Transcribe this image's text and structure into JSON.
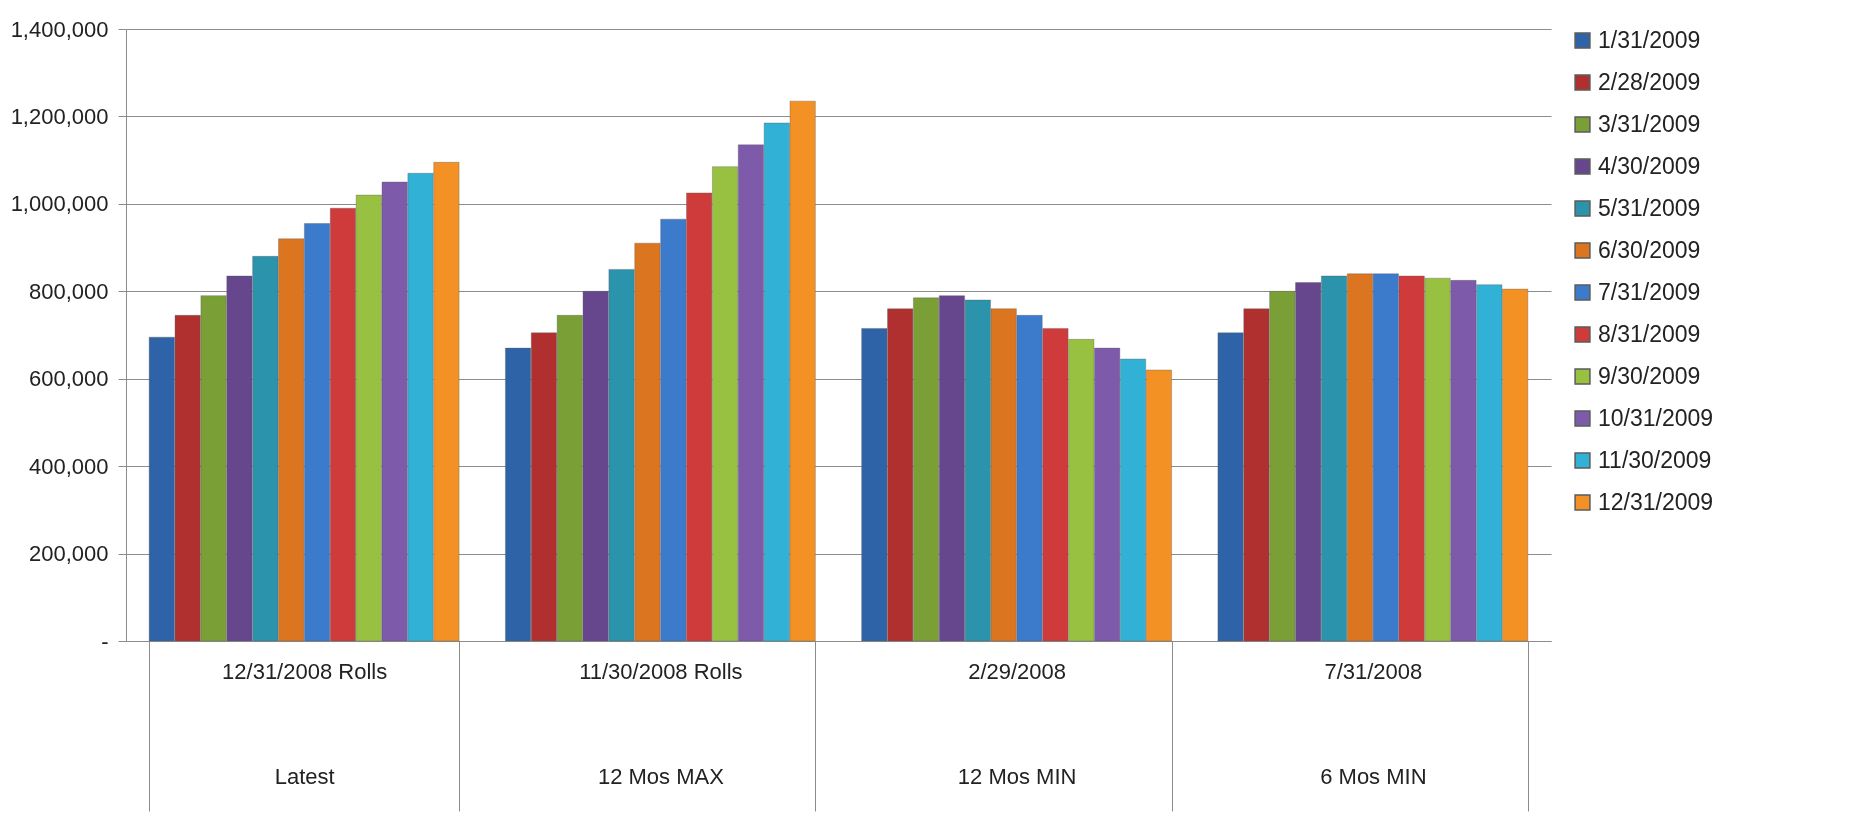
{
  "chart_data": {
    "type": "bar",
    "categories": [
      "12/31/2008 Rolls\nLatest",
      "11/30/2008 Rolls\n12 Mos MAX",
      "2/29/2008\n12 Mos MIN",
      "7/31/2008\n6 Mos MIN"
    ],
    "series": [
      {
        "name": "1/31/2009",
        "color": "#2f63a8",
        "values": [
          695000,
          670000,
          715000,
          705000
        ]
      },
      {
        "name": "2/28/2009",
        "color": "#b0302f",
        "values": [
          745000,
          705000,
          760000,
          760000
        ]
      },
      {
        "name": "3/31/2009",
        "color": "#7b9f37",
        "values": [
          790000,
          745000,
          785000,
          800000
        ]
      },
      {
        "name": "4/30/2009",
        "color": "#66478e",
        "values": [
          835000,
          800000,
          790000,
          820000
        ]
      },
      {
        "name": "5/31/2009",
        "color": "#2b93ab",
        "values": [
          880000,
          850000,
          780000,
          835000
        ]
      },
      {
        "name": "6/30/2009",
        "color": "#dc7520",
        "values": [
          920000,
          910000,
          760000,
          840000
        ]
      },
      {
        "name": "7/31/2009",
        "color": "#3c7acb",
        "values": [
          955000,
          965000,
          745000,
          840000
        ]
      },
      {
        "name": "8/31/2009",
        "color": "#cf3b3a",
        "values": [
          990000,
          1025000,
          715000,
          835000
        ]
      },
      {
        "name": "9/30/2009",
        "color": "#98c142",
        "values": [
          1020000,
          1085000,
          690000,
          830000
        ]
      },
      {
        "name": "10/31/2009",
        "color": "#7e5aab",
        "values": [
          1050000,
          1135000,
          670000,
          825000
        ]
      },
      {
        "name": "11/30/2009",
        "color": "#32b1d6",
        "values": [
          1070000,
          1185000,
          645000,
          815000
        ]
      },
      {
        "name": "12/31/2009",
        "color": "#f49125",
        "values": [
          1095000,
          1235000,
          620000,
          805000
        ]
      }
    ],
    "ylim": [
      0,
      1400000
    ],
    "yticks": [
      {
        "value": 0,
        "label": "-"
      },
      {
        "value": 200000,
        "label": "200,000"
      },
      {
        "value": 400000,
        "label": "400,000"
      },
      {
        "value": 600000,
        "label": "600,000"
      },
      {
        "value": 800000,
        "label": "800,000"
      },
      {
        "value": 1000000,
        "label": "1,000,000"
      },
      {
        "value": 1200000,
        "label": "1,200,000"
      },
      {
        "value": 1400000,
        "label": "1,400,000"
      }
    ],
    "grid": "y",
    "legend": "right"
  }
}
